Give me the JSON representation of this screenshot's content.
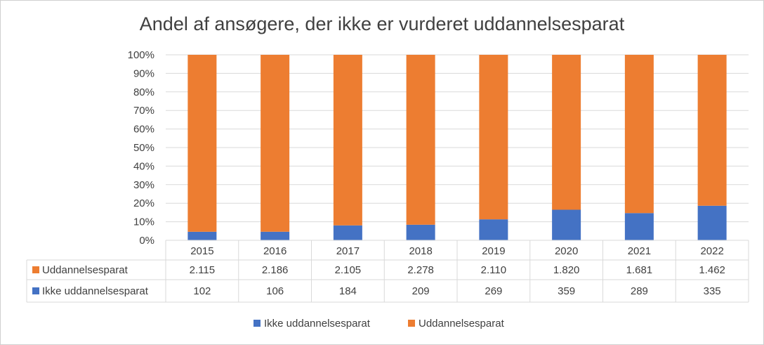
{
  "chart_data": {
    "type": "bar",
    "stacked": "percent",
    "title": "Andel af ansøgere, der ikke er vurderet uddannelsesparat",
    "categories": [
      "2015",
      "2016",
      "2017",
      "2018",
      "2019",
      "2020",
      "2021",
      "2022"
    ],
    "series": [
      {
        "name": "Ikke uddannelsesparat",
        "color": "#4472C4",
        "values": [
          102,
          106,
          184,
          209,
          269,
          359,
          289,
          335
        ],
        "labels": [
          "102",
          "106",
          "184",
          "209",
          "269",
          "359",
          "289",
          "335"
        ]
      },
      {
        "name": "Uddannelsesparat",
        "color": "#ED7D31",
        "values": [
          2115,
          2186,
          2105,
          2278,
          2110,
          1820,
          1681,
          1462
        ],
        "labels": [
          "2.115",
          "2.186",
          "2.105",
          "2.278",
          "2.110",
          "1.820",
          "1.681",
          "1.462"
        ]
      }
    ],
    "y_ticks": [
      "0%",
      "10%",
      "20%",
      "30%",
      "40%",
      "50%",
      "60%",
      "70%",
      "80%",
      "90%",
      "100%"
    ],
    "ylim": [
      0,
      100
    ],
    "grid": true,
    "data_table": true,
    "table_row_order": [
      "Uddannelsesparat",
      "Ikke uddannelsesparat"
    ],
    "legend_position": "bottom",
    "legend_order": [
      "Ikke uddannelsesparat",
      "Uddannelsesparat"
    ]
  }
}
